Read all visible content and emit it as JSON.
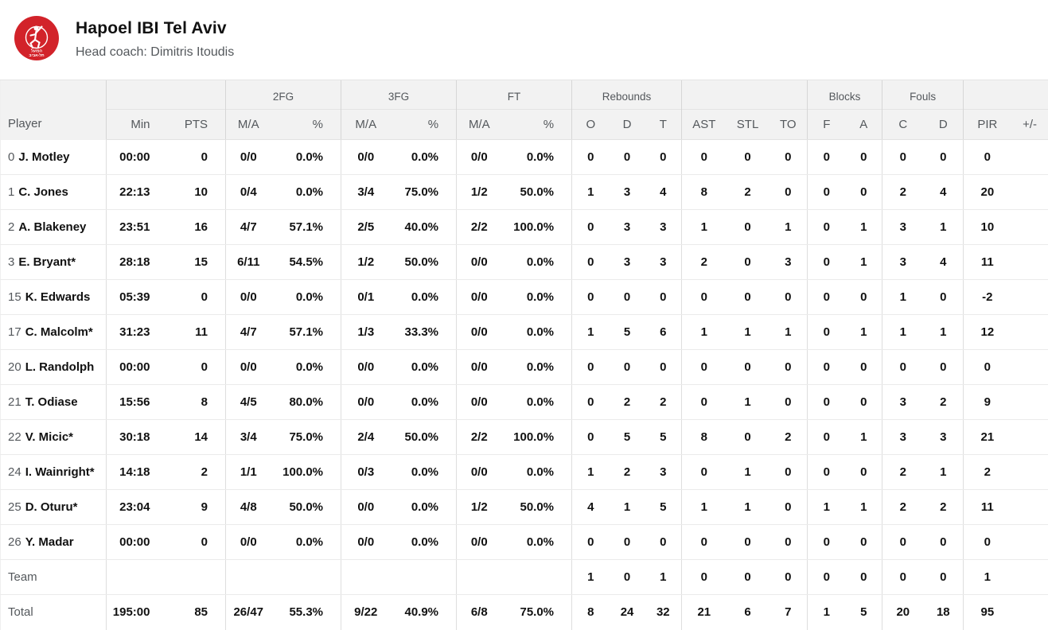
{
  "team": {
    "name": "Hapoel IBI Tel Aviv",
    "head_coach": "Head coach: Dimitris Itoudis",
    "logo_color": "#d2232a",
    "logo_text_top": "הפועל",
    "logo_text_bottom": "תל-אביב"
  },
  "table": {
    "groups": {
      "player": "Player",
      "fg2": "2FG",
      "fg3": "3FG",
      "ft": "FT",
      "rebounds": "Rebounds",
      "blocks": "Blocks",
      "fouls": "Fouls"
    },
    "columns": {
      "min": "Min",
      "pts": "PTS",
      "ma": "M/A",
      "pct": "%",
      "o": "O",
      "d": "D",
      "t": "T",
      "ast": "AST",
      "stl": "STL",
      "to": "TO",
      "f": "F",
      "a": "A",
      "c": "C",
      "dd": "D",
      "pir": "PIR",
      "plusminus": "+/-"
    },
    "rows": [
      {
        "number": "0",
        "name": "J. Motley",
        "cells": [
          "00:00",
          "0",
          "0/0",
          "0.0%",
          "0/0",
          "0.0%",
          "0/0",
          "0.0%",
          "0",
          "0",
          "0",
          "0",
          "0",
          "0",
          "0",
          "0",
          "0",
          "0",
          "0",
          ""
        ]
      },
      {
        "number": "1",
        "name": "C. Jones",
        "cells": [
          "22:13",
          "10",
          "0/4",
          "0.0%",
          "3/4",
          "75.0%",
          "1/2",
          "50.0%",
          "1",
          "3",
          "4",
          "8",
          "2",
          "0",
          "0",
          "0",
          "2",
          "4",
          "20",
          ""
        ]
      },
      {
        "number": "2",
        "name": "A. Blakeney",
        "cells": [
          "23:51",
          "16",
          "4/7",
          "57.1%",
          "2/5",
          "40.0%",
          "2/2",
          "100.0%",
          "0",
          "3",
          "3",
          "1",
          "0",
          "1",
          "0",
          "1",
          "3",
          "1",
          "10",
          ""
        ]
      },
      {
        "number": "3",
        "name": "E. Bryant*",
        "cells": [
          "28:18",
          "15",
          "6/11",
          "54.5%",
          "1/2",
          "50.0%",
          "0/0",
          "0.0%",
          "0",
          "3",
          "3",
          "2",
          "0",
          "3",
          "0",
          "1",
          "3",
          "4",
          "11",
          ""
        ]
      },
      {
        "number": "15",
        "name": "K. Edwards",
        "cells": [
          "05:39",
          "0",
          "0/0",
          "0.0%",
          "0/1",
          "0.0%",
          "0/0",
          "0.0%",
          "0",
          "0",
          "0",
          "0",
          "0",
          "0",
          "0",
          "0",
          "1",
          "0",
          "-2",
          ""
        ]
      },
      {
        "number": "17",
        "name": "C. Malcolm*",
        "cells": [
          "31:23",
          "11",
          "4/7",
          "57.1%",
          "1/3",
          "33.3%",
          "0/0",
          "0.0%",
          "1",
          "5",
          "6",
          "1",
          "1",
          "1",
          "0",
          "1",
          "1",
          "1",
          "12",
          ""
        ]
      },
      {
        "number": "20",
        "name": "L. Randolph",
        "cells": [
          "00:00",
          "0",
          "0/0",
          "0.0%",
          "0/0",
          "0.0%",
          "0/0",
          "0.0%",
          "0",
          "0",
          "0",
          "0",
          "0",
          "0",
          "0",
          "0",
          "0",
          "0",
          "0",
          ""
        ]
      },
      {
        "number": "21",
        "name": "T. Odiase",
        "cells": [
          "15:56",
          "8",
          "4/5",
          "80.0%",
          "0/0",
          "0.0%",
          "0/0",
          "0.0%",
          "0",
          "2",
          "2",
          "0",
          "1",
          "0",
          "0",
          "0",
          "3",
          "2",
          "9",
          ""
        ]
      },
      {
        "number": "22",
        "name": "V. Micic*",
        "cells": [
          "30:18",
          "14",
          "3/4",
          "75.0%",
          "2/4",
          "50.0%",
          "2/2",
          "100.0%",
          "0",
          "5",
          "5",
          "8",
          "0",
          "2",
          "0",
          "1",
          "3",
          "3",
          "21",
          ""
        ]
      },
      {
        "number": "24",
        "name": "I. Wainright*",
        "cells": [
          "14:18",
          "2",
          "1/1",
          "100.0%",
          "0/3",
          "0.0%",
          "0/0",
          "0.0%",
          "1",
          "2",
          "3",
          "0",
          "1",
          "0",
          "0",
          "0",
          "2",
          "1",
          "2",
          ""
        ]
      },
      {
        "number": "25",
        "name": "D. Oturu*",
        "cells": [
          "23:04",
          "9",
          "4/8",
          "50.0%",
          "0/0",
          "0.0%",
          "1/2",
          "50.0%",
          "4",
          "1",
          "5",
          "1",
          "1",
          "0",
          "1",
          "1",
          "2",
          "2",
          "11",
          ""
        ]
      },
      {
        "number": "26",
        "name": "Y. Madar",
        "cells": [
          "00:00",
          "0",
          "0/0",
          "0.0%",
          "0/0",
          "0.0%",
          "0/0",
          "0.0%",
          "0",
          "0",
          "0",
          "0",
          "0",
          "0",
          "0",
          "0",
          "0",
          "0",
          "0",
          ""
        ]
      }
    ],
    "team_row": {
      "label": "Team",
      "cells": [
        "",
        "",
        "",
        "",
        "",
        "",
        "",
        "",
        "1",
        "0",
        "1",
        "0",
        "0",
        "0",
        "0",
        "0",
        "0",
        "0",
        "1",
        ""
      ]
    },
    "total_row": {
      "label": "Total",
      "cells": [
        "195:00",
        "85",
        "26/47",
        "55.3%",
        "9/22",
        "40.9%",
        "6/8",
        "75.0%",
        "8",
        "24",
        "32",
        "21",
        "6",
        "7",
        "1",
        "5",
        "20",
        "18",
        "95",
        ""
      ]
    }
  }
}
